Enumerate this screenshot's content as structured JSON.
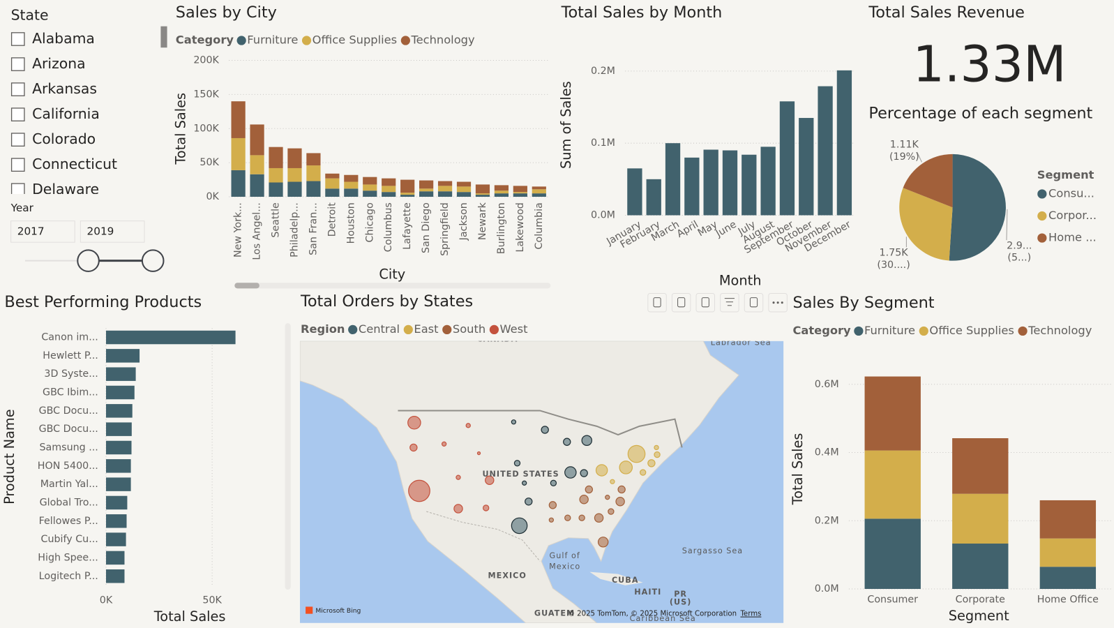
{
  "slicer": {
    "title": "State",
    "options": [
      "Alabama",
      "Arizona",
      "Arkansas",
      "California",
      "Colorado",
      "Connecticut",
      "Delaware"
    ],
    "year_title": "Year",
    "year_range": [
      2017,
      2019
    ]
  },
  "card": {
    "title": "Total Sales Revenue",
    "value": "1.33M"
  },
  "map": {
    "title": "Total Orders by States",
    "legend_title": "Region",
    "regions": [
      {
        "name": "Central",
        "color": "#41626d"
      },
      {
        "name": "East",
        "color": "#d3ae4b"
      },
      {
        "name": "South",
        "color": "#a2603a"
      },
      {
        "name": "West",
        "color": "#c4523d"
      }
    ],
    "labels": [
      "CANADA",
      "Labrador Sea",
      "UNITED STATES",
      "Gulf of",
      "Mexico",
      "Sargasso Sea",
      "MEXICO",
      "CUBA",
      "HAITI",
      "PR",
      "(US)",
      "GUATEM",
      "Caribbean Sea"
    ],
    "attribution": "© 2025 TomTom, © 2025 Microsoft Corporation",
    "terms": "Terms",
    "brand": "Microsoft Bing"
  },
  "chart_data": [
    {
      "type": "bar",
      "stacked": true,
      "title": "Sales by City",
      "legend_title": "Category",
      "x_label": "City",
      "y_label": "Total Sales",
      "grid": true,
      "categories": [
        "New York...",
        "Los Angel...",
        "Seattle",
        "Philadelp...",
        "San Fran...",
        "Detroit",
        "Houston",
        "Chicago",
        "Columbus",
        "Lafayette",
        "San Diego",
        "Springfield",
        "Jackson",
        "Newark",
        "Burlington",
        "Lakewood",
        "Columbia"
      ],
      "series": [
        {
          "name": "Furniture",
          "color": "#41626d",
          "values": [
            39000,
            33000,
            21000,
            22000,
            23000,
            12000,
            12000,
            9000,
            7000,
            3000,
            8000,
            8000,
            7000,
            3000,
            5000,
            5000,
            5000
          ]
        },
        {
          "name": "Office Supplies",
          "color": "#d3ae4b",
          "values": [
            47000,
            28000,
            21000,
            20000,
            23000,
            15000,
            10000,
            9000,
            9000,
            3000,
            4000,
            8000,
            8000,
            2000,
            4000,
            2000,
            6000
          ]
        },
        {
          "name": "Technology",
          "color": "#a2603a",
          "values": [
            54000,
            45000,
            31000,
            29000,
            18000,
            7000,
            10000,
            11000,
            11000,
            19000,
            12000,
            7000,
            7000,
            13000,
            8000,
            9000,
            4000
          ]
        }
      ],
      "ylim": [
        0,
        200000
      ],
      "yticks": [
        {
          "value": 0,
          "label": "0K"
        },
        {
          "value": 50000,
          "label": "50K"
        },
        {
          "value": 100000,
          "label": "100K"
        },
        {
          "value": 150000,
          "label": "150K"
        },
        {
          "value": 200000,
          "label": "200K"
        }
      ]
    },
    {
      "type": "bar",
      "title": "Total Sales by Month",
      "x_label": "Month",
      "y_label": "Sum of Sales",
      "grid": true,
      "color": "#41626d",
      "categories": [
        "January",
        "February",
        "March",
        "April",
        "May",
        "June",
        "July",
        "August",
        "September",
        "October",
        "November",
        "December"
      ],
      "values": [
        65000,
        50000,
        100000,
        80000,
        91000,
        90000,
        84000,
        95000,
        158000,
        135000,
        179000,
        201000
      ],
      "ylim": [
        0,
        205000
      ],
      "yticks": [
        {
          "value": 0,
          "label": "0.0M"
        },
        {
          "value": 100000,
          "label": "0.1M"
        },
        {
          "value": 200000,
          "label": "0.2M"
        }
      ]
    },
    {
      "type": "pie",
      "title": "Percentage of each segment",
      "legend_title": "Segment",
      "categories": [
        "Consu...",
        "Corpor...",
        "Home ..."
      ],
      "values": [
        2980,
        1750,
        1110
      ],
      "value_labels": [
        [
          "2.9...",
          "(5...)"
        ],
        [
          "1.75K",
          "(30....)"
        ],
        [
          "1.11K",
          "(19%)"
        ]
      ],
      "colors": [
        "#41626d",
        "#d3ae4b",
        "#a2603a"
      ]
    },
    {
      "type": "bar",
      "orientation": "horizontal",
      "title": "Best Performing Products",
      "x_label": "Total Sales",
      "y_label": "Product Name",
      "grid": true,
      "color": "#41626d",
      "categories": [
        "Canon im...",
        "Hewlett P...",
        "3D Syste...",
        "GBC Ibim...",
        "GBC Docu...",
        "GBC Docu...",
        "Samsung ...",
        "HON 5400...",
        "Martin Yal...",
        "Global Tro...",
        "Fellowes P...",
        "Cubify Cu...",
        "High Spee...",
        "Logitech P..."
      ],
      "values": [
        61000,
        15800,
        14000,
        13400,
        12400,
        12100,
        12000,
        11700,
        11700,
        10000,
        9700,
        9400,
        8700,
        8700
      ],
      "xlim": [
        0,
        84000
      ],
      "xticks": [
        {
          "value": 0,
          "label": "0K"
        },
        {
          "value": 50000,
          "label": "50K"
        }
      ]
    },
    {
      "type": "bar",
      "stacked": true,
      "title": "Sales By Segment",
      "legend_title": "Category",
      "x_label": "Segment",
      "y_label": "Total Sales",
      "grid": true,
      "categories": [
        "Consumer",
        "Corporate",
        "Home Office"
      ],
      "series": [
        {
          "name": "Furniture",
          "color": "#41626d",
          "values": [
            206000,
            133000,
            65000
          ]
        },
        {
          "name": "Office Supplies",
          "color": "#d3ae4b",
          "values": [
            200000,
            146000,
            83000
          ]
        },
        {
          "name": "Technology",
          "color": "#a2603a",
          "values": [
            217000,
            163000,
            112000
          ]
        }
      ],
      "ylim": [
        0,
        680000
      ],
      "yticks": [
        {
          "value": 0,
          "label": "0.0M"
        },
        {
          "value": 200000,
          "label": "0.2M"
        },
        {
          "value": 400000,
          "label": "0.4M"
        },
        {
          "value": 600000,
          "label": "0.6M"
        }
      ]
    }
  ]
}
